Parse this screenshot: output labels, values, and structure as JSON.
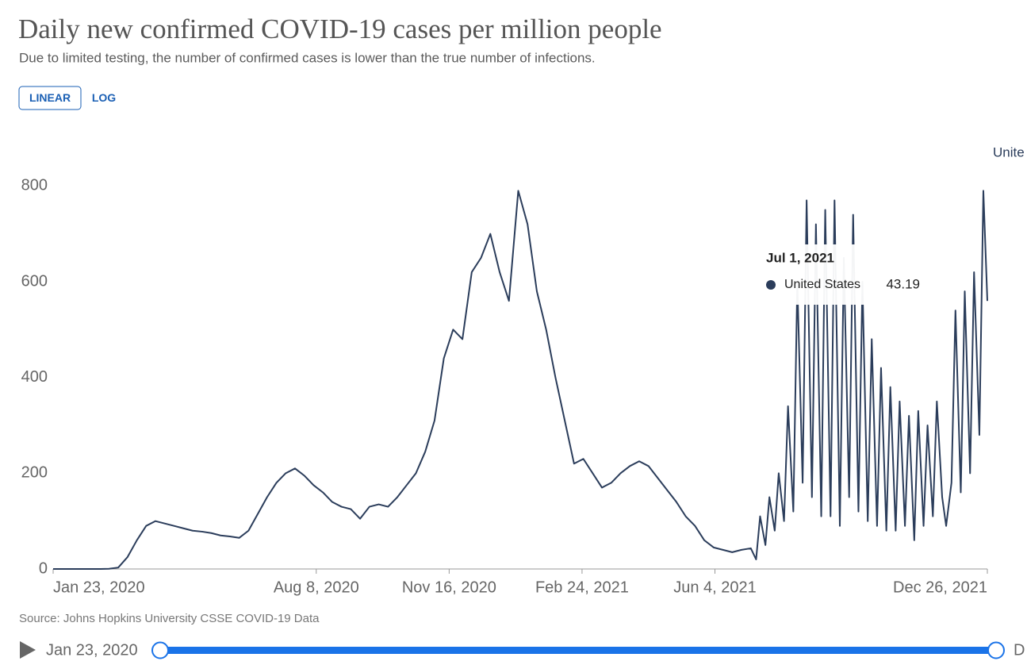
{
  "chart_data": {
    "type": "line",
    "title": "Daily new confirmed COVID-19 cases per million people",
    "subtitle": "Due to limited testing, the number of confirmed cases is lower than the true number of infections.",
    "scale_options": [
      "LINEAR",
      "LOG"
    ],
    "active_scale": "LINEAR",
    "source": "Source: Johns Hopkins University CSSE COVID-19 Data",
    "log_scale": false,
    "grid": false,
    "end_label": "Unite",
    "x": [
      "2020-01-23",
      "2020-01-30",
      "2020-02-06",
      "2020-02-13",
      "2020-02-20",
      "2020-02-27",
      "2020-03-05",
      "2020-03-12",
      "2020-03-19",
      "2020-03-26",
      "2020-04-02",
      "2020-04-09",
      "2020-04-16",
      "2020-04-23",
      "2020-04-30",
      "2020-05-07",
      "2020-05-14",
      "2020-05-21",
      "2020-05-28",
      "2020-06-04",
      "2020-06-11",
      "2020-06-18",
      "2020-06-25",
      "2020-07-02",
      "2020-07-09",
      "2020-07-16",
      "2020-07-23",
      "2020-07-30",
      "2020-08-06",
      "2020-08-13",
      "2020-08-20",
      "2020-08-27",
      "2020-09-03",
      "2020-09-10",
      "2020-09-17",
      "2020-09-24",
      "2020-10-01",
      "2020-10-08",
      "2020-10-15",
      "2020-10-22",
      "2020-10-29",
      "2020-11-05",
      "2020-11-12",
      "2020-11-19",
      "2020-11-26",
      "2020-12-03",
      "2020-12-10",
      "2020-12-17",
      "2020-12-24",
      "2020-12-31",
      "2021-01-07",
      "2021-01-14",
      "2021-01-21",
      "2021-01-28",
      "2021-02-04",
      "2021-02-11",
      "2021-02-18",
      "2021-02-25",
      "2021-03-04",
      "2021-03-11",
      "2021-03-18",
      "2021-03-25",
      "2021-04-01",
      "2021-04-08",
      "2021-04-15",
      "2021-04-22",
      "2021-04-29",
      "2021-05-06",
      "2021-05-13",
      "2021-05-20",
      "2021-05-27",
      "2021-06-03",
      "2021-06-10",
      "2021-06-17",
      "2021-06-24",
      "2021-07-01",
      "2021-07-05",
      "2021-07-08",
      "2021-07-12",
      "2021-07-15",
      "2021-07-19",
      "2021-07-22",
      "2021-07-26",
      "2021-07-29",
      "2021-08-02",
      "2021-08-05",
      "2021-08-09",
      "2021-08-12",
      "2021-08-16",
      "2021-08-19",
      "2021-08-23",
      "2021-08-26",
      "2021-08-30",
      "2021-09-02",
      "2021-09-06",
      "2021-09-09",
      "2021-09-13",
      "2021-09-16",
      "2021-09-20",
      "2021-09-23",
      "2021-09-27",
      "2021-09-30",
      "2021-10-04",
      "2021-10-07",
      "2021-10-11",
      "2021-10-14",
      "2021-10-18",
      "2021-10-21",
      "2021-10-25",
      "2021-10-28",
      "2021-11-01",
      "2021-11-04",
      "2021-11-08",
      "2021-11-11",
      "2021-11-15",
      "2021-11-18",
      "2021-11-22",
      "2021-11-25",
      "2021-11-29",
      "2021-12-02",
      "2021-12-06",
      "2021-12-09",
      "2021-12-13",
      "2021-12-16",
      "2021-12-20",
      "2021-12-23",
      "2021-12-26"
    ],
    "series": [
      {
        "name": "United States",
        "color": "#2b3d5b",
        "values": [
          0,
          0,
          0,
          0,
          0,
          0,
          0.5,
          3,
          25,
          60,
          90,
          100,
          95,
          90,
          85,
          80,
          78,
          75,
          70,
          68,
          65,
          80,
          115,
          150,
          180,
          200,
          210,
          195,
          175,
          160,
          140,
          130,
          125,
          105,
          130,
          135,
          130,
          150,
          175,
          200,
          245,
          310,
          440,
          500,
          480,
          620,
          650,
          700,
          620,
          560,
          790,
          720,
          580,
          500,
          400,
          310,
          220,
          230,
          200,
          170,
          180,
          200,
          215,
          225,
          215,
          190,
          165,
          140,
          110,
          90,
          60,
          45,
          40,
          35,
          40,
          43.19,
          20,
          110,
          50,
          150,
          80,
          200,
          100,
          340,
          120,
          600,
          180,
          770,
          150,
          720,
          110,
          750,
          110,
          770,
          90,
          650,
          150,
          740,
          120,
          600,
          100,
          480,
          90,
          420,
          80,
          380,
          80,
          350,
          90,
          320,
          60,
          330,
          90,
          300,
          110,
          350,
          150,
          90,
          180,
          540,
          160,
          580,
          200,
          620,
          280,
          790,
          560
        ]
      }
    ],
    "xlim": [
      "2020-01-23",
      "2021-12-26"
    ],
    "xticks": [
      {
        "value": "2020-01-23",
        "label": "Jan 23, 2020"
      },
      {
        "value": "2020-08-08",
        "label": "Aug 8, 2020"
      },
      {
        "value": "2020-11-16",
        "label": "Nov 16, 2020"
      },
      {
        "value": "2021-02-24",
        "label": "Feb 24, 2021"
      },
      {
        "value": "2021-06-04",
        "label": "Jun 4, 2021"
      },
      {
        "value": "2021-12-26",
        "label": "Dec 26, 2021"
      }
    ],
    "ylim": [
      0,
      915
    ],
    "yticks": [
      0,
      200,
      400,
      600,
      800
    ],
    "tooltip": {
      "date": "Jul 1, 2021",
      "series": "United States",
      "value": 43.19
    },
    "timeline": {
      "start": "Jan 23, 2020",
      "end": "D"
    }
  }
}
